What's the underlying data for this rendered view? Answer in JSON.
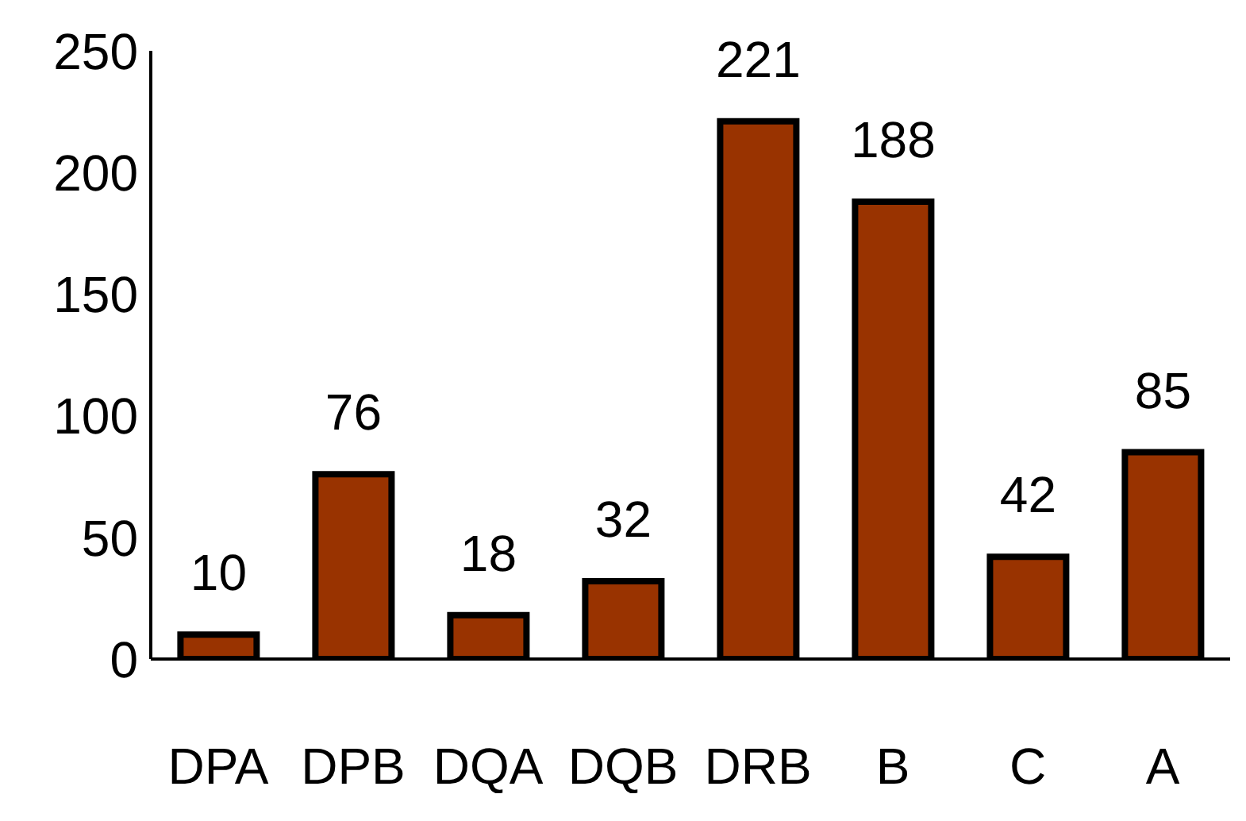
{
  "chart_data": {
    "type": "bar",
    "categories": [
      "DPA",
      "DPB",
      "DQA",
      "DQB",
      "DRB",
      "B",
      "C",
      "A"
    ],
    "values": [
      10,
      76,
      18,
      32,
      221,
      188,
      42,
      85
    ],
    "color": "#993300",
    "ylim": [
      0,
      250
    ],
    "yticks": [
      0,
      50,
      100,
      150,
      200,
      250
    ],
    "data_labels": true
  }
}
